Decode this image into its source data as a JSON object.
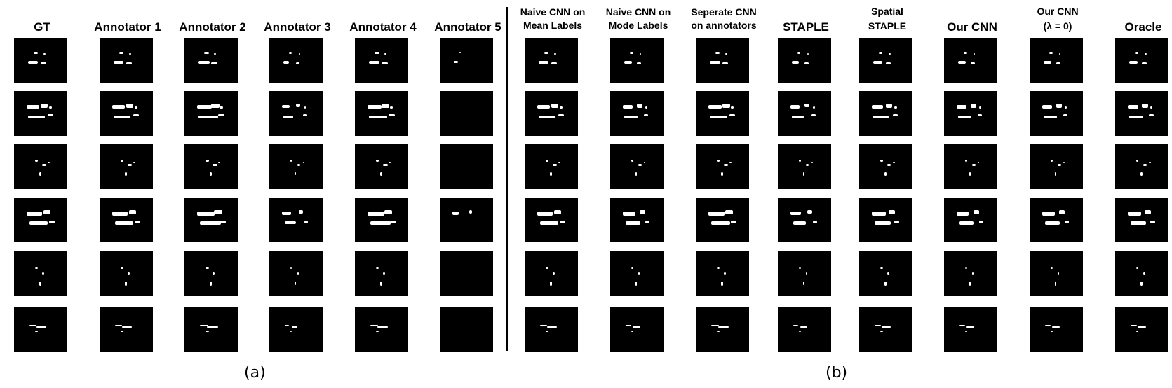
{
  "panels": {
    "a_label": "(a)",
    "b_label": "(b)"
  },
  "columns": [
    {
      "key": "gt",
      "header": "GT",
      "style": "big"
    },
    {
      "key": "ann1",
      "header": "Annotator 1",
      "style": "big"
    },
    {
      "key": "ann2",
      "header": "Annotator 2",
      "style": "big"
    },
    {
      "key": "ann3",
      "header": "Annotator 3",
      "style": "big"
    },
    {
      "key": "ann4",
      "header": "Annotator 4",
      "style": "big"
    },
    {
      "key": "ann5",
      "header": "Annotator 5",
      "style": "big"
    },
    {
      "key": "naive_mean",
      "header": "Naive CNN on\nMean Labels",
      "style": "two"
    },
    {
      "key": "naive_mode",
      "header": "Naive CNN on\nMode Labels",
      "style": "two"
    },
    {
      "key": "sep_cnn",
      "header": "Seperate CNN\non annotators",
      "style": "two"
    },
    {
      "key": "staple",
      "header": "STAPLE",
      "style": "big"
    },
    {
      "key": "spatial_staple",
      "header": "Spatial\nSTAPLE",
      "style": "twosmall"
    },
    {
      "key": "our_cnn",
      "header": "Our CNN",
      "style": "big"
    },
    {
      "key": "our_cnn_l0",
      "header": "Our CNN\n(λ = 0)",
      "style": "twosmall"
    },
    {
      "key": "oracle",
      "header": "Oracle",
      "style": "big"
    }
  ]
}
